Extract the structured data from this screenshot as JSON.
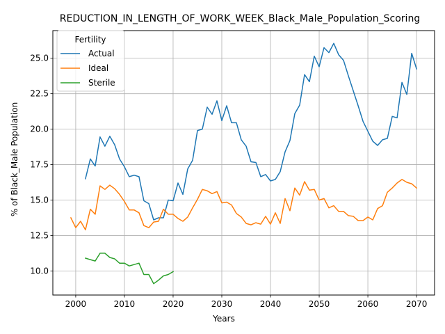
{
  "chart_data": {
    "type": "line",
    "title": "REDUCTION_IN_LENGTH_OF_WORK_WEEK_Black_Male_Population_Scoring",
    "xlabel": "Years",
    "ylabel": "% of Black_Male Population",
    "xlim": [
      1995.3,
      2073.7
    ],
    "ylim": [
      8.3,
      26.95
    ],
    "xticks": [
      2000,
      2010,
      2020,
      2030,
      2040,
      2050,
      2060,
      2070
    ],
    "yticks": [
      10.0,
      12.5,
      15.0,
      17.5,
      20.0,
      22.5,
      25.0
    ],
    "grid": true,
    "legend": {
      "title": "Fertility",
      "location": "upper-left"
    },
    "series": [
      {
        "name": "Actual",
        "color": "#1f77b4",
        "x": [
          2002,
          2003,
          2004,
          2005,
          2006,
          2007,
          2008,
          2009,
          2010,
          2011,
          2012,
          2013,
          2014,
          2015,
          2016,
          2017,
          2018,
          2019,
          2020,
          2021,
          2022,
          2023,
          2024,
          2025,
          2026,
          2027,
          2028,
          2029,
          2030,
          2031,
          2032,
          2033,
          2034,
          2035,
          2036,
          2037,
          2038,
          2039,
          2040,
          2041,
          2042,
          2043,
          2044,
          2045,
          2046,
          2047,
          2048,
          2049,
          2050,
          2051,
          2052,
          2053,
          2054,
          2055,
          2056,
          2057,
          2058,
          2059,
          2060,
          2061,
          2062,
          2063,
          2064,
          2065,
          2066,
          2067,
          2068,
          2069,
          2070
        ],
        "y": [
          16.5,
          17.9,
          17.4,
          19.45,
          18.8,
          19.5,
          18.9,
          17.9,
          17.35,
          16.65,
          16.75,
          16.65,
          14.95,
          14.75,
          13.6,
          13.75,
          13.75,
          15.0,
          14.95,
          16.2,
          15.4,
          17.2,
          17.8,
          19.9,
          20.0,
          21.55,
          21.05,
          22.0,
          20.6,
          21.65,
          20.45,
          20.45,
          19.25,
          18.8,
          17.7,
          17.65,
          16.65,
          16.8,
          16.35,
          16.45,
          17.0,
          18.4,
          19.2,
          21.1,
          21.7,
          23.85,
          23.35,
          25.15,
          24.4,
          25.75,
          25.4,
          26.05,
          25.25,
          24.85,
          23.75,
          22.7,
          21.65,
          20.55,
          19.85,
          19.15,
          18.85,
          19.25,
          19.35,
          20.9,
          20.8,
          23.3,
          22.45,
          25.35,
          24.25
        ]
      },
      {
        "name": "Ideal",
        "color": "#ff7f0e",
        "x": [
          1999,
          2000,
          2001,
          2002,
          2003,
          2004,
          2005,
          2006,
          2007,
          2008,
          2009,
          2010,
          2011,
          2012,
          2013,
          2014,
          2015,
          2016,
          2017,
          2018,
          2019,
          2020,
          2021,
          2022,
          2023,
          2024,
          2025,
          2026,
          2027,
          2028,
          2029,
          2030,
          2031,
          2032,
          2033,
          2034,
          2035,
          2036,
          2037,
          2038,
          2039,
          2040,
          2041,
          2042,
          2043,
          2044,
          2045,
          2046,
          2047,
          2048,
          2049,
          2050,
          2051,
          2052,
          2053,
          2054,
          2055,
          2056,
          2057,
          2058,
          2059,
          2060,
          2061,
          2062,
          2063,
          2064,
          2065,
          2066,
          2067,
          2068,
          2069,
          2070
        ],
        "y": [
          13.75,
          13.05,
          13.5,
          12.9,
          14.35,
          14.0,
          16.0,
          15.75,
          16.05,
          15.8,
          15.4,
          14.9,
          14.3,
          14.3,
          14.1,
          13.2,
          13.05,
          13.45,
          13.5,
          14.35,
          14.0,
          14.0,
          13.7,
          13.5,
          13.8,
          14.45,
          15.05,
          15.75,
          15.65,
          15.45,
          15.6,
          14.8,
          14.85,
          14.65,
          14.05,
          13.8,
          13.35,
          13.25,
          13.4,
          13.3,
          13.85,
          13.3,
          14.1,
          13.35,
          15.1,
          14.25,
          15.85,
          15.35,
          16.3,
          15.7,
          15.75,
          15.0,
          15.1,
          14.45,
          14.6,
          14.2,
          14.2,
          13.9,
          13.85,
          13.55,
          13.55,
          13.8,
          13.6,
          14.4,
          14.6,
          15.55,
          15.85,
          16.2,
          16.45,
          16.25,
          16.15,
          15.85
        ]
      },
      {
        "name": "Sterile",
        "color": "#2ca02c",
        "x": [
          2002,
          2003,
          2004,
          2005,
          2006,
          2007,
          2008,
          2009,
          2010,
          2011,
          2012,
          2013,
          2014,
          2015,
          2016,
          2017,
          2018,
          2019,
          2020
        ],
        "y": [
          10.9,
          10.8,
          10.7,
          11.25,
          11.25,
          10.95,
          10.85,
          10.55,
          10.55,
          10.35,
          10.45,
          10.55,
          9.75,
          9.75,
          9.1,
          9.35,
          9.65,
          9.75,
          9.95
        ]
      }
    ]
  }
}
